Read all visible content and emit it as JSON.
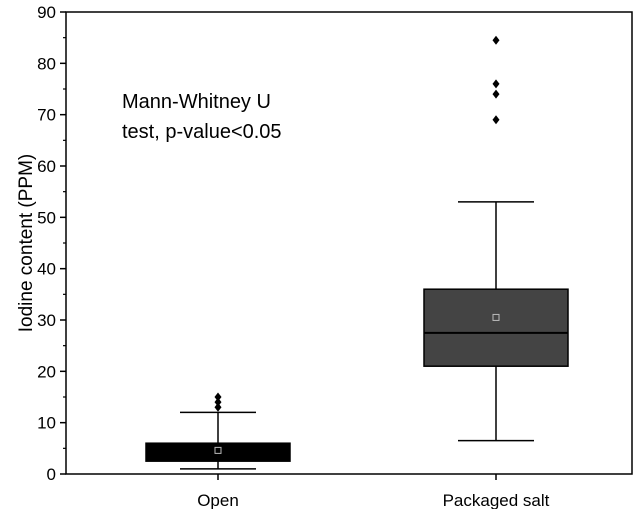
{
  "chart_data": {
    "type": "box",
    "categories": [
      "Open",
      "Packaged salt"
    ],
    "ylabel": "Iodine content (PPM)",
    "xlabel": "",
    "ylim": [
      0,
      90
    ],
    "yticks": [
      0,
      10,
      20,
      30,
      40,
      50,
      60,
      70,
      80,
      90
    ],
    "annotation": [
      "Mann-Whitney U",
      "test, p-value<0.05"
    ],
    "boxes": [
      {
        "category": "Open",
        "whisker_low": 1,
        "q1": 2.5,
        "median": 4,
        "q3": 6,
        "whisker_high": 12,
        "mean": 4.6,
        "outliers": [
          13,
          14,
          15
        ],
        "color": "#000000"
      },
      {
        "category": "Packaged salt",
        "whisker_low": 6.5,
        "q1": 21,
        "median": 27.5,
        "q3": 36,
        "whisker_high": 53,
        "mean": 30.5,
        "outliers": [
          69,
          74,
          76,
          84.5
        ],
        "color": "#444444"
      }
    ]
  }
}
